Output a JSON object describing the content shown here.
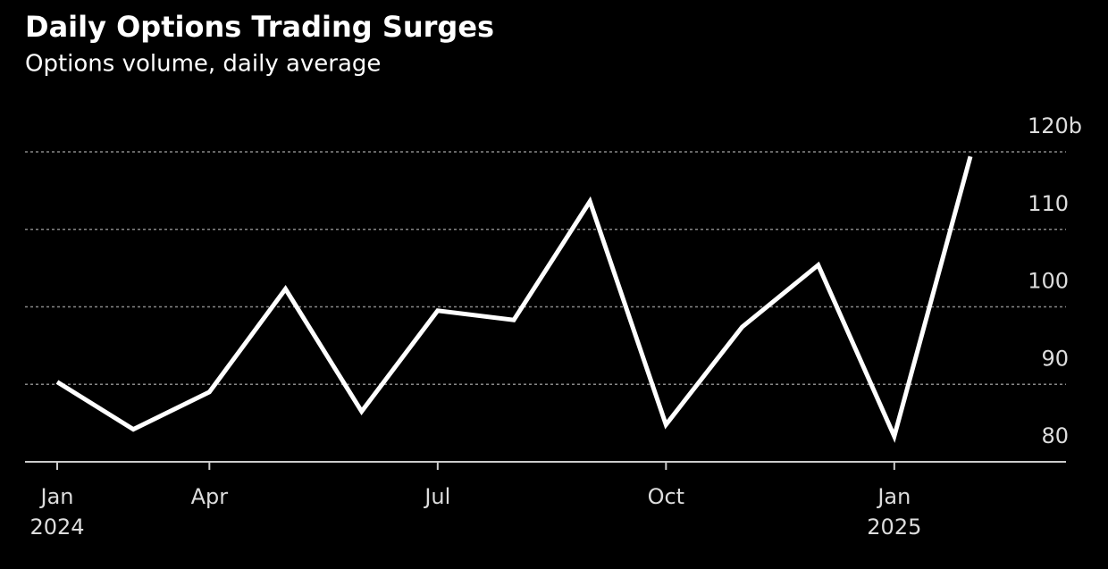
{
  "chart_data": {
    "type": "line",
    "title": "Daily Options Trading Surges",
    "subtitle": "Options volume, daily average",
    "categories": [
      "Jan 2024",
      null,
      "Apr",
      null,
      null,
      "Jul",
      null,
      null,
      "Oct",
      null,
      null,
      "Jan 2025",
      null
    ],
    "series": [
      {
        "name": "Options volume",
        "color": "#ffffff",
        "values": [
          90.3,
          84.2,
          89.0,
          102.3,
          86.5,
          99.5,
          98.3,
          113.6,
          84.8,
          97.4,
          105.4,
          83.3,
          119.4
        ]
      }
    ],
    "ylim": [
      80,
      120
    ],
    "yticks": [
      80,
      90,
      100,
      110,
      {
        "value": 120,
        "label": "120b"
      }
    ],
    "grid": true
  }
}
